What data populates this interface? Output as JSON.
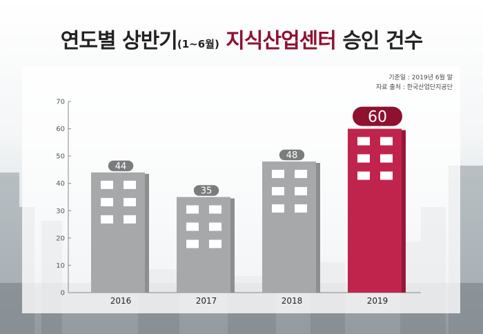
{
  "title": {
    "part1": "연도별 상반기",
    "part2": "(1~6월)",
    "part3": "지식산업센터",
    "part4": "승인 건수"
  },
  "source": {
    "line1": "기준일 : 2019년 6월 말",
    "line2": "자료 출처 : 한국산업단지공단"
  },
  "colors": {
    "bar": "#a7a8a9",
    "bar_side": "#8d8e8f",
    "highlight": "#c0244d",
    "highlight_side": "#98163a",
    "badge_gray": "#7b7c7d",
    "badge_red": "#8e1130",
    "title_highlight": "#8e1130"
  },
  "chart_data": {
    "type": "bar",
    "categories": [
      "2016",
      "2017",
      "2018",
      "2019"
    ],
    "values": [
      44,
      35,
      48,
      60
    ],
    "highlight_index": 3,
    "ylim": [
      0,
      70
    ],
    "yticks": [
      0,
      10,
      20,
      30,
      40,
      50,
      60,
      70
    ],
    "grid": false,
    "legend": "none"
  }
}
